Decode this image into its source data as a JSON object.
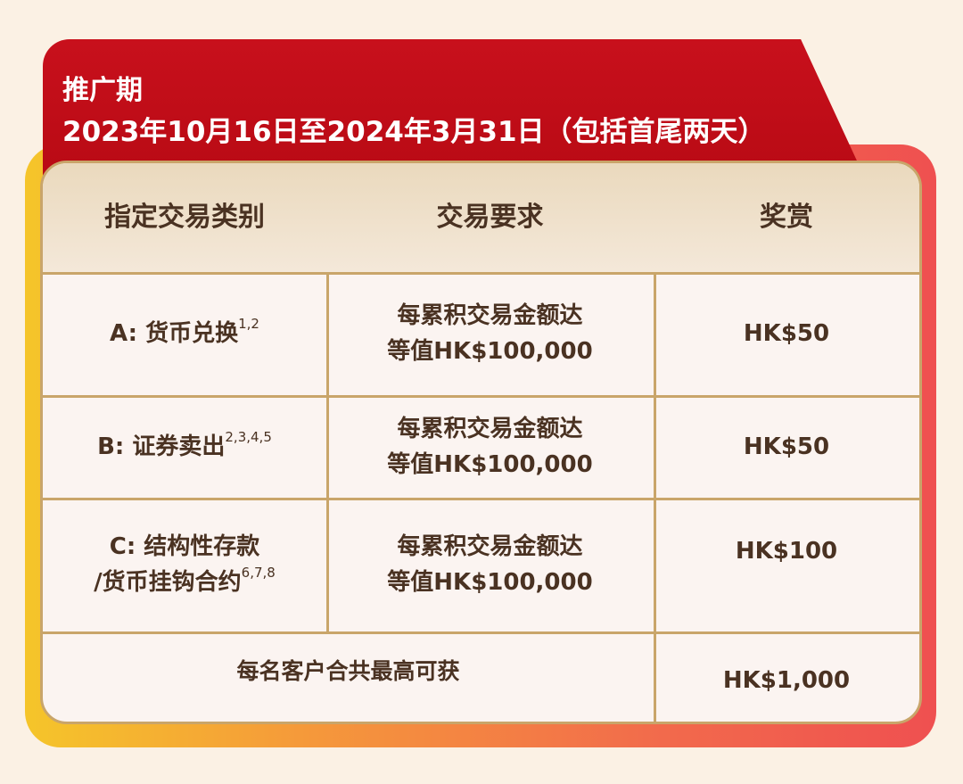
{
  "header": {
    "label": "推广期",
    "period": "2023年10月16日至2024年3月31日（包括首尾两天）"
  },
  "table": {
    "columns": [
      "指定交易类别",
      "交易要求",
      "奖赏"
    ],
    "rows": [
      {
        "category": [
          "A: 货币兑换"
        ],
        "notes": "1,2",
        "requirement": [
          "每累积交易金额达",
          "等值HK$100,000"
        ],
        "reward": "HK$50"
      },
      {
        "category": [
          "B: 证券卖出"
        ],
        "notes": "2,3,4,5",
        "requirement": [
          "每累积交易金额达",
          "等值HK$100,000"
        ],
        "reward": "HK$50"
      },
      {
        "category": [
          "C: 结构性存款",
          "/货币挂钩合约"
        ],
        "notes": "6,7,8",
        "requirement": [
          "每累积交易金额达",
          "等值HK$100,000"
        ],
        "reward": "HK$100"
      }
    ],
    "total": {
      "label": "每名客户合共最高可获",
      "reward": "HK$1,000"
    }
  }
}
